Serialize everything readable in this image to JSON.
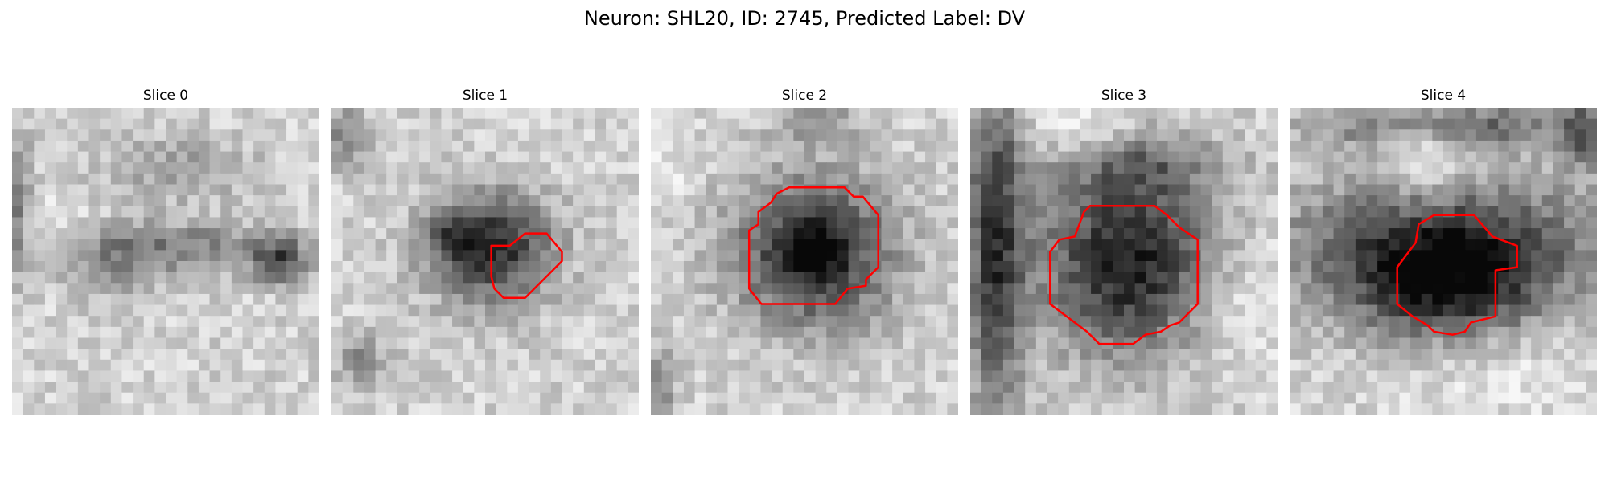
{
  "title": "Neuron: SHL20, ID: 2745, Predicted Label: DV",
  "colormap": "gray",
  "outline_color": "#ff0000",
  "panels": [
    {
      "title": "Slice 0",
      "has_roi": false
    },
    {
      "title": "Slice 1",
      "has_roi": true
    },
    {
      "title": "Slice 2",
      "has_roi": true
    },
    {
      "title": "Slice 3",
      "has_roi": true
    },
    {
      "title": "Slice 4",
      "has_roi": true
    }
  ]
}
